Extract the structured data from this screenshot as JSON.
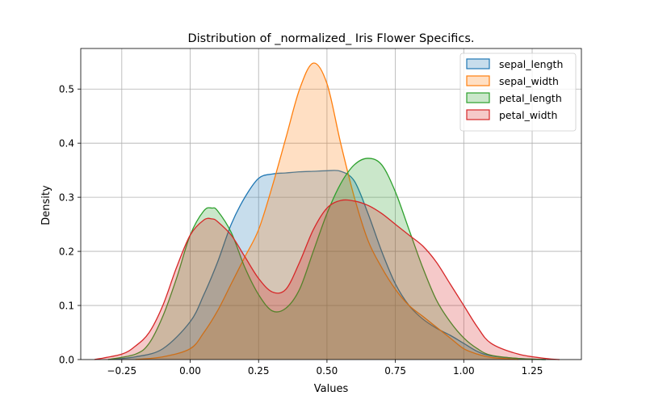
{
  "chart_data": {
    "type": "area",
    "title": "Distribution of _normalized_ Iris Flower Specifics.",
    "xlabel": "Values",
    "ylabel": "Density",
    "xlim": [
      -0.4,
      1.43
    ],
    "ylim": [
      0,
      0.575
    ],
    "xticks": [
      -0.25,
      0.0,
      0.25,
      0.5,
      0.75,
      1.0,
      1.25
    ],
    "xtick_labels": [
      "−0.25",
      "0.00",
      "0.25",
      "0.50",
      "0.75",
      "1.00",
      "1.25"
    ],
    "yticks": [
      0.0,
      0.1,
      0.2,
      0.3,
      0.4,
      0.5
    ],
    "ytick_labels": [
      "0.0",
      "0.1",
      "0.2",
      "0.3",
      "0.4",
      "0.5"
    ],
    "grid": true,
    "legend_position": "top-right",
    "series": [
      {
        "name": "sepal_length",
        "color": "#1f77b4",
        "x": [
          -0.3,
          -0.2,
          -0.1,
          0.0,
          0.05,
          0.1,
          0.15,
          0.2,
          0.25,
          0.3,
          0.35,
          0.4,
          0.45,
          0.5,
          0.55,
          0.6,
          0.65,
          0.7,
          0.75,
          0.8,
          0.85,
          0.9,
          0.95,
          1.0,
          1.05,
          1.1,
          1.2,
          1.3
        ],
        "y": [
          0.0,
          0.005,
          0.02,
          0.07,
          0.12,
          0.18,
          0.25,
          0.3,
          0.335,
          0.343,
          0.345,
          0.347,
          0.348,
          0.349,
          0.348,
          0.33,
          0.27,
          0.2,
          0.14,
          0.1,
          0.075,
          0.058,
          0.045,
          0.03,
          0.015,
          0.007,
          0.002,
          0.0
        ]
      },
      {
        "name": "sepal_width",
        "color": "#ff7f0e",
        "x": [
          -0.2,
          -0.1,
          0.0,
          0.05,
          0.1,
          0.15,
          0.2,
          0.25,
          0.3,
          0.35,
          0.4,
          0.45,
          0.5,
          0.55,
          0.6,
          0.65,
          0.7,
          0.75,
          0.8,
          0.85,
          0.9,
          0.95,
          1.0,
          1.05,
          1.1,
          1.2
        ],
        "y": [
          0.0,
          0.005,
          0.02,
          0.05,
          0.09,
          0.14,
          0.19,
          0.24,
          0.32,
          0.41,
          0.5,
          0.548,
          0.51,
          0.4,
          0.3,
          0.22,
          0.17,
          0.13,
          0.1,
          0.08,
          0.06,
          0.04,
          0.02,
          0.01,
          0.004,
          0.0
        ]
      },
      {
        "name": "petal_length",
        "color": "#2ca02c",
        "x": [
          -0.3,
          -0.2,
          -0.15,
          -0.1,
          -0.05,
          0.0,
          0.05,
          0.08,
          0.1,
          0.15,
          0.2,
          0.25,
          0.3,
          0.35,
          0.4,
          0.45,
          0.5,
          0.55,
          0.6,
          0.65,
          0.7,
          0.75,
          0.8,
          0.85,
          0.9,
          0.95,
          1.0,
          1.05,
          1.1,
          1.2,
          1.3
        ],
        "y": [
          0.0,
          0.01,
          0.03,
          0.08,
          0.15,
          0.23,
          0.275,
          0.28,
          0.275,
          0.235,
          0.17,
          0.12,
          0.09,
          0.095,
          0.13,
          0.2,
          0.27,
          0.325,
          0.36,
          0.372,
          0.36,
          0.31,
          0.24,
          0.17,
          0.11,
          0.07,
          0.04,
          0.02,
          0.008,
          0.002,
          0.0
        ]
      },
      {
        "name": "petal_width",
        "color": "#d62728",
        "x": [
          -0.35,
          -0.25,
          -0.2,
          -0.15,
          -0.1,
          -0.05,
          0.0,
          0.05,
          0.08,
          0.1,
          0.15,
          0.2,
          0.25,
          0.3,
          0.35,
          0.4,
          0.45,
          0.5,
          0.55,
          0.6,
          0.65,
          0.7,
          0.75,
          0.8,
          0.85,
          0.9,
          0.95,
          1.0,
          1.05,
          1.1,
          1.2,
          1.3,
          1.35
        ],
        "y": [
          0.0,
          0.01,
          0.025,
          0.05,
          0.1,
          0.17,
          0.23,
          0.258,
          0.26,
          0.255,
          0.23,
          0.19,
          0.15,
          0.125,
          0.13,
          0.18,
          0.24,
          0.28,
          0.294,
          0.293,
          0.285,
          0.27,
          0.25,
          0.23,
          0.21,
          0.18,
          0.14,
          0.1,
          0.06,
          0.03,
          0.01,
          0.002,
          0.0
        ]
      }
    ]
  }
}
